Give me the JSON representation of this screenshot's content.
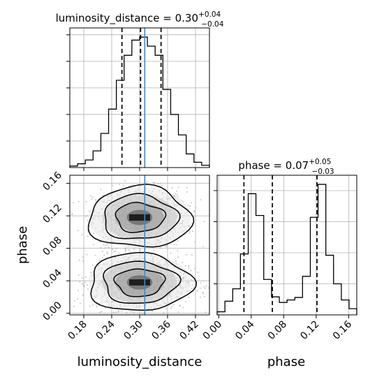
{
  "titles": {
    "lum": {
      "base": "luminosity_distance = 0.30",
      "sup": "+0.04",
      "sub": "−0.04"
    },
    "phase": {
      "base": "phase = 0.07",
      "sup": "+0.05",
      "sub": "−0.03"
    }
  },
  "xlabels": {
    "lum": "luminosity_distance",
    "phase": "phase"
  },
  "ylabels": {
    "phase": "phase"
  },
  "chart_data": [
    {
      "type": "histogram",
      "panel": "luminosity_distance marginal",
      "xlim": [
        0.15,
        0.45
      ],
      "bin_edges": [
        0.15,
        0.1667,
        0.1833,
        0.2,
        0.2167,
        0.2333,
        0.25,
        0.2667,
        0.2833,
        0.3,
        0.3167,
        0.3333,
        0.35,
        0.3667,
        0.3833,
        0.4,
        0.4167,
        0.4333,
        0.45
      ],
      "counts": [
        2,
        5,
        10,
        22,
        45,
        77,
        115,
        148,
        168,
        172,
        160,
        148,
        103,
        70,
        43,
        18,
        7,
        3
      ],
      "quantiles": [
        0.262,
        0.302,
        0.346
      ],
      "truth": 0.311,
      "grid": true
    },
    {
      "type": "histogram",
      "panel": "phase marginal",
      "xlim": [
        -0.002,
        0.17
      ],
      "bin_edges": [
        -0.002,
        0.0076,
        0.0172,
        0.0267,
        0.0363,
        0.0458,
        0.0554,
        0.065,
        0.0746,
        0.0841,
        0.0937,
        0.1032,
        0.1128,
        0.1223,
        0.1319,
        0.1414,
        0.151,
        0.1605,
        0.17
      ],
      "counts": [
        5,
        22,
        42,
        98,
        195,
        160,
        57,
        29,
        20,
        24,
        28,
        62,
        157,
        210,
        96,
        50,
        24,
        10
      ],
      "quantiles": [
        0.031,
        0.066,
        0.121
      ],
      "grid": true
    },
    {
      "type": "scatter",
      "panel": "2D density luminosity_distance vs phase",
      "xlim": [
        0.15,
        0.45
      ],
      "ylim": [
        -0.002,
        0.17
      ],
      "clusters": [
        {
          "center": [
            0.3,
            0.118
          ],
          "spread": [
            0.05,
            0.018
          ],
          "fraction": 0.45
        },
        {
          "center": [
            0.3,
            0.038
          ],
          "spread": [
            0.05,
            0.017
          ],
          "fraction": 0.55
        }
      ],
      "contour_levels": 4,
      "truth_x": 0.311
    }
  ],
  "axes": {
    "lum_ticks": [
      0.18,
      0.24,
      0.3,
      0.36,
      0.42
    ],
    "phase_ticks": [
      0.0,
      0.04,
      0.08,
      0.12,
      0.16
    ]
  }
}
